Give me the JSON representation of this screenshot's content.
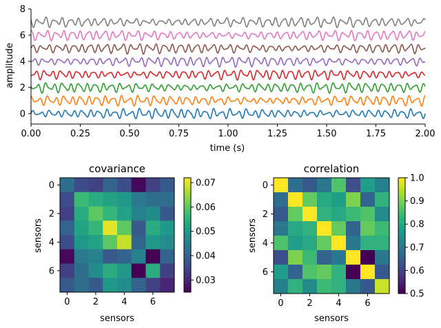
{
  "chart_data": [
    {
      "type": "line",
      "title": "",
      "xlabel": "time (s)",
      "ylabel": "amplitude",
      "xlim": [
        0,
        2
      ],
      "ylim": [
        -0.8,
        8
      ],
      "xticks": [
        "0.00",
        "0.25",
        "0.50",
        "0.75",
        "1.00",
        "1.25",
        "1.50",
        "1.75",
        "2.00"
      ],
      "yticks": [
        "0",
        "2",
        "4",
        "6",
        "8"
      ],
      "grid": false,
      "series": [
        {
          "offset": 0,
          "color": "#1f77b4"
        },
        {
          "offset": 1,
          "color": "#ff7f0e"
        },
        {
          "offset": 2,
          "color": "#2ca02c"
        },
        {
          "offset": 3,
          "color": "#d62728"
        },
        {
          "offset": 4,
          "color": "#9467bd"
        },
        {
          "offset": 5,
          "color": "#8c564b"
        },
        {
          "offset": 6,
          "color": "#e377c2"
        },
        {
          "offset": 7,
          "color": "#7f7f7f"
        }
      ]
    },
    {
      "type": "heatmap",
      "title": "covariance",
      "xlabel": "sensors",
      "ylabel": "sensors",
      "ticks": [
        "0",
        "2",
        "4",
        "6"
      ],
      "colorbar": {
        "min": 0.025,
        "max": 0.072,
        "ticks": [
          "0.03",
          "0.04",
          "0.05",
          "0.06",
          "0.07"
        ]
      },
      "colormap": "viridis",
      "values": [
        [
          0.042,
          0.036,
          0.034,
          0.04,
          0.036,
          0.026,
          0.034,
          0.038
        ],
        [
          0.036,
          0.057,
          0.054,
          0.052,
          0.05,
          0.044,
          0.042,
          0.042
        ],
        [
          0.034,
          0.054,
          0.06,
          0.056,
          0.052,
          0.046,
          0.048,
          0.038
        ],
        [
          0.04,
          0.052,
          0.056,
          0.07,
          0.06,
          0.038,
          0.054,
          0.05
        ],
        [
          0.036,
          0.05,
          0.052,
          0.06,
          0.068,
          0.04,
          0.05,
          0.048
        ],
        [
          0.026,
          0.044,
          0.046,
          0.038,
          0.04,
          0.046,
          0.025,
          0.04
        ],
        [
          0.034,
          0.042,
          0.048,
          0.054,
          0.05,
          0.025,
          0.054,
          0.034
        ],
        [
          0.038,
          0.042,
          0.038,
          0.05,
          0.048,
          0.04,
          0.034,
          0.03
        ]
      ]
    },
    {
      "type": "heatmap",
      "title": "correlation",
      "xlabel": "sensors",
      "ylabel": "sensors",
      "ticks": [
        "0",
        "2",
        "4",
        "6"
      ],
      "colorbar": {
        "min": 0.5,
        "max": 1.0,
        "ticks": [
          "0.5",
          "0.6",
          "0.7",
          "0.8",
          "0.9",
          "1.0"
        ]
      },
      "colormap": "viridis",
      "values": [
        [
          1.0,
          0.68,
          0.64,
          0.7,
          0.86,
          0.62,
          0.78,
          0.72
        ],
        [
          0.68,
          1.0,
          0.88,
          0.8,
          0.78,
          0.9,
          0.66,
          0.82
        ],
        [
          0.64,
          0.88,
          1.0,
          0.82,
          0.8,
          0.84,
          0.86,
          0.74
        ],
        [
          0.7,
          0.8,
          0.82,
          1.0,
          0.88,
          0.66,
          0.88,
          0.84
        ],
        [
          0.86,
          0.78,
          0.8,
          0.88,
          1.0,
          0.7,
          0.82,
          0.82
        ],
        [
          0.62,
          0.9,
          0.84,
          0.66,
          0.7,
          1.0,
          0.5,
          0.7
        ],
        [
          0.78,
          0.66,
          0.86,
          0.88,
          0.82,
          0.5,
          1.0,
          0.64
        ],
        [
          0.72,
          0.82,
          0.74,
          0.84,
          0.82,
          0.7,
          0.64,
          0.96
        ]
      ]
    }
  ]
}
